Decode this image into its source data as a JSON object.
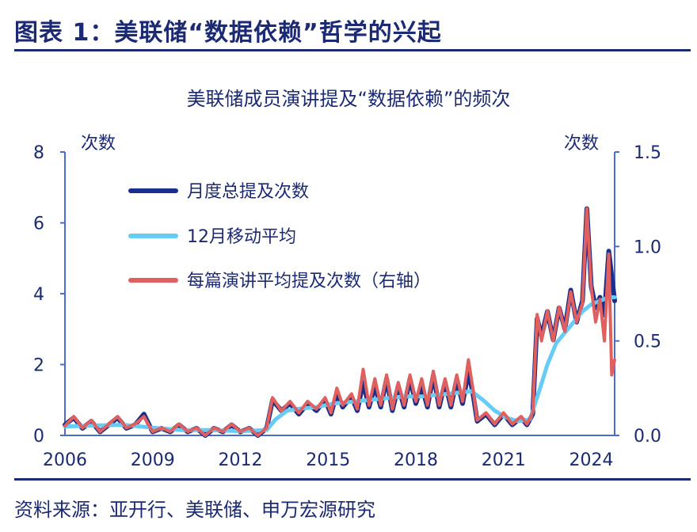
{
  "header": {
    "figure_title": "图表 1：美联储“数据依赖”哲学的兴起",
    "source_note": "资料来源：亚开行、美联储、申万宏源研究"
  },
  "colors": {
    "text": "#1b2a72",
    "axis": "#4a6bd1",
    "monthly": "#1a2f8a",
    "ma12": "#66ccf5",
    "per_speech": "#e06060"
  },
  "chart_data": {
    "type": "line",
    "title": "美联储成员演讲提及“数据依赖”的频次",
    "left_unit": "次数",
    "right_unit": "次数",
    "left_ylim": [
      0,
      8
    ],
    "right_ylim": [
      0,
      1.5
    ],
    "left_ticks": [
      "0",
      "2",
      "4",
      "6",
      "8"
    ],
    "right_ticks": [
      "0.0",
      "0.5",
      "1.0",
      "1.5"
    ],
    "x_ticks": [
      "2006",
      "2009",
      "2012",
      "2015",
      "2018",
      "2021",
      "2024"
    ],
    "xlim": [
      2006,
      2024.8
    ],
    "grid": false,
    "legend_position": "top-left",
    "series": [
      {
        "name": "月度总提及次数",
        "axis": "left",
        "points": [
          [
            2006.0,
            0.3
          ],
          [
            2006.3,
            0.5
          ],
          [
            2006.6,
            0.2
          ],
          [
            2006.9,
            0.4
          ],
          [
            2007.2,
            0.1
          ],
          [
            2007.5,
            0.3
          ],
          [
            2007.8,
            0.5
          ],
          [
            2008.1,
            0.2
          ],
          [
            2008.4,
            0.3
          ],
          [
            2008.7,
            0.6
          ],
          [
            2009.0,
            0.1
          ],
          [
            2009.3,
            0.2
          ],
          [
            2009.6,
            0.1
          ],
          [
            2009.9,
            0.3
          ],
          [
            2010.2,
            0.1
          ],
          [
            2010.5,
            0.2
          ],
          [
            2010.8,
            0.0
          ],
          [
            2011.1,
            0.2
          ],
          [
            2011.4,
            0.1
          ],
          [
            2011.7,
            0.3
          ],
          [
            2012.0,
            0.1
          ],
          [
            2012.3,
            0.2
          ],
          [
            2012.6,
            0.0
          ],
          [
            2012.9,
            0.2
          ],
          [
            2013.1,
            1.0
          ],
          [
            2013.4,
            0.7
          ],
          [
            2013.7,
            0.9
          ],
          [
            2014.0,
            0.6
          ],
          [
            2014.3,
            0.9
          ],
          [
            2014.6,
            0.7
          ],
          [
            2014.9,
            1.0
          ],
          [
            2015.1,
            0.6
          ],
          [
            2015.3,
            1.2
          ],
          [
            2015.5,
            0.8
          ],
          [
            2015.8,
            1.1
          ],
          [
            2016.0,
            0.7
          ],
          [
            2016.2,
            1.5
          ],
          [
            2016.4,
            0.8
          ],
          [
            2016.6,
            1.4
          ],
          [
            2016.8,
            0.8
          ],
          [
            2017.0,
            1.6
          ],
          [
            2017.2,
            0.7
          ],
          [
            2017.4,
            1.4
          ],
          [
            2017.6,
            0.8
          ],
          [
            2017.8,
            1.6
          ],
          [
            2018.0,
            0.9
          ],
          [
            2018.2,
            1.4
          ],
          [
            2018.4,
            0.8
          ],
          [
            2018.6,
            1.7
          ],
          [
            2018.8,
            0.8
          ],
          [
            2019.0,
            1.5
          ],
          [
            2019.2,
            0.8
          ],
          [
            2019.4,
            1.6
          ],
          [
            2019.6,
            0.9
          ],
          [
            2019.8,
            1.8
          ],
          [
            2019.95,
            1.2
          ],
          [
            2020.1,
            0.4
          ],
          [
            2020.4,
            0.6
          ],
          [
            2020.7,
            0.3
          ],
          [
            2021.0,
            0.6
          ],
          [
            2021.3,
            0.3
          ],
          [
            2021.6,
            0.5
          ],
          [
            2021.8,
            0.3
          ],
          [
            2022.0,
            0.6
          ],
          [
            2022.15,
            3.3
          ],
          [
            2022.3,
            2.8
          ],
          [
            2022.5,
            3.5
          ],
          [
            2022.7,
            2.7
          ],
          [
            2022.9,
            3.6
          ],
          [
            2023.1,
            3.0
          ],
          [
            2023.3,
            4.1
          ],
          [
            2023.5,
            3.2
          ],
          [
            2023.7,
            3.8
          ],
          [
            2023.85,
            6.4
          ],
          [
            2024.0,
            4.2
          ],
          [
            2024.15,
            3.6
          ],
          [
            2024.3,
            3.9
          ],
          [
            2024.45,
            3.4
          ],
          [
            2024.6,
            5.2
          ],
          [
            2024.8,
            3.8
          ]
        ]
      },
      {
        "name": "12月移动平均",
        "axis": "left",
        "points": [
          [
            2006.0,
            0.25
          ],
          [
            2007.0,
            0.28
          ],
          [
            2008.0,
            0.3
          ],
          [
            2009.0,
            0.22
          ],
          [
            2010.0,
            0.15
          ],
          [
            2011.0,
            0.15
          ],
          [
            2012.0,
            0.12
          ],
          [
            2012.9,
            0.15
          ],
          [
            2013.2,
            0.45
          ],
          [
            2013.6,
            0.7
          ],
          [
            2014.0,
            0.75
          ],
          [
            2014.6,
            0.8
          ],
          [
            2015.2,
            0.9
          ],
          [
            2015.8,
            0.95
          ],
          [
            2016.4,
            1.0
          ],
          [
            2017.0,
            1.05
          ],
          [
            2017.6,
            1.1
          ],
          [
            2018.2,
            1.1
          ],
          [
            2018.8,
            1.15
          ],
          [
            2019.4,
            1.2
          ],
          [
            2019.9,
            1.25
          ],
          [
            2020.3,
            1.0
          ],
          [
            2020.7,
            0.7
          ],
          [
            2021.1,
            0.5
          ],
          [
            2021.5,
            0.4
          ],
          [
            2021.9,
            0.45
          ],
          [
            2022.2,
            1.2
          ],
          [
            2022.5,
            2.0
          ],
          [
            2022.8,
            2.6
          ],
          [
            2023.1,
            2.9
          ],
          [
            2023.4,
            3.2
          ],
          [
            2023.7,
            3.5
          ],
          [
            2024.0,
            3.7
          ],
          [
            2024.3,
            3.8
          ],
          [
            2024.6,
            3.9
          ],
          [
            2024.8,
            3.9
          ]
        ]
      },
      {
        "name": "每篇演讲平均提及次数（右轴）",
        "axis": "right",
        "points": [
          [
            2006.0,
            0.05
          ],
          [
            2006.3,
            0.1
          ],
          [
            2006.6,
            0.04
          ],
          [
            2006.9,
            0.08
          ],
          [
            2007.2,
            0.02
          ],
          [
            2007.5,
            0.06
          ],
          [
            2007.8,
            0.1
          ],
          [
            2008.1,
            0.04
          ],
          [
            2008.4,
            0.06
          ],
          [
            2008.7,
            0.1
          ],
          [
            2009.0,
            0.02
          ],
          [
            2009.3,
            0.04
          ],
          [
            2009.6,
            0.02
          ],
          [
            2009.9,
            0.06
          ],
          [
            2010.2,
            0.02
          ],
          [
            2010.5,
            0.04
          ],
          [
            2010.8,
            0.0
          ],
          [
            2011.1,
            0.04
          ],
          [
            2011.4,
            0.02
          ],
          [
            2011.7,
            0.06
          ],
          [
            2012.0,
            0.02
          ],
          [
            2012.3,
            0.04
          ],
          [
            2012.6,
            0.0
          ],
          [
            2012.9,
            0.04
          ],
          [
            2013.1,
            0.2
          ],
          [
            2013.4,
            0.13
          ],
          [
            2013.7,
            0.18
          ],
          [
            2014.0,
            0.12
          ],
          [
            2014.3,
            0.18
          ],
          [
            2014.6,
            0.14
          ],
          [
            2014.9,
            0.2
          ],
          [
            2015.1,
            0.12
          ],
          [
            2015.3,
            0.25
          ],
          [
            2015.5,
            0.16
          ],
          [
            2015.8,
            0.22
          ],
          [
            2016.0,
            0.14
          ],
          [
            2016.2,
            0.35
          ],
          [
            2016.4,
            0.16
          ],
          [
            2016.6,
            0.3
          ],
          [
            2016.8,
            0.16
          ],
          [
            2017.0,
            0.32
          ],
          [
            2017.2,
            0.14
          ],
          [
            2017.4,
            0.28
          ],
          [
            2017.6,
            0.16
          ],
          [
            2017.8,
            0.32
          ],
          [
            2018.0,
            0.18
          ],
          [
            2018.2,
            0.3
          ],
          [
            2018.4,
            0.16
          ],
          [
            2018.6,
            0.34
          ],
          [
            2018.8,
            0.16
          ],
          [
            2019.0,
            0.3
          ],
          [
            2019.2,
            0.16
          ],
          [
            2019.4,
            0.32
          ],
          [
            2019.6,
            0.18
          ],
          [
            2019.8,
            0.4
          ],
          [
            2019.95,
            0.25
          ],
          [
            2020.1,
            0.08
          ],
          [
            2020.4,
            0.12
          ],
          [
            2020.7,
            0.06
          ],
          [
            2021.0,
            0.12
          ],
          [
            2021.3,
            0.06
          ],
          [
            2021.6,
            0.1
          ],
          [
            2021.8,
            0.06
          ],
          [
            2022.0,
            0.12
          ],
          [
            2022.15,
            0.64
          ],
          [
            2022.3,
            0.5
          ],
          [
            2022.5,
            0.66
          ],
          [
            2022.7,
            0.5
          ],
          [
            2022.9,
            0.68
          ],
          [
            2023.1,
            0.55
          ],
          [
            2023.3,
            0.76
          ],
          [
            2023.5,
            0.6
          ],
          [
            2023.7,
            0.7
          ],
          [
            2023.85,
            1.2
          ],
          [
            2024.0,
            0.78
          ],
          [
            2024.15,
            0.6
          ],
          [
            2024.3,
            0.72
          ],
          [
            2024.45,
            0.5
          ],
          [
            2024.6,
            0.96
          ],
          [
            2024.7,
            0.32
          ],
          [
            2024.8,
            0.4
          ]
        ]
      }
    ]
  }
}
